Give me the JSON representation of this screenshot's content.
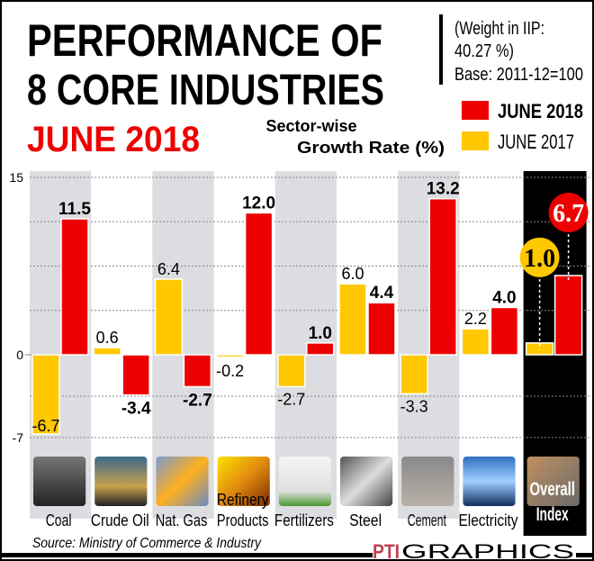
{
  "header": {
    "title_line1": "PERFORMANCE OF",
    "title_line2": "8 CORE INDUSTRIES",
    "title_line3": "JUNE 2018",
    "note_line1": "(Weight in IIP:",
    "note_line2": "40.27 %)",
    "note_line3": "Base: 2011-12=100",
    "subtitle_line1": "Sector-wise",
    "subtitle_line2": "Growth Rate (%)"
  },
  "footer": {
    "source": "Source: Ministry of Commerce & Industry",
    "credit_logo": "PTI",
    "credit": "GRAPHICS"
  },
  "chart_data": {
    "type": "bar",
    "title": "PERFORMANCE OF 8 CORE INDUSTRIES JUNE 2018",
    "ylabel": "Sector-wise Growth Rate (%)",
    "ylim": [
      -7,
      15
    ],
    "yticks": [
      15,
      0,
      -7
    ],
    "grid": true,
    "legend_placement": "top-right",
    "categories": [
      "Coal",
      "Crude Oil",
      "Nat. Gas",
      "Refinery Products",
      "Fertilizers",
      "Steel",
      "Cement",
      "Electricity",
      "Overall Index"
    ],
    "category_label_lines": [
      [
        "Coal"
      ],
      [
        "Crude Oil"
      ],
      [
        "Nat. Gas"
      ],
      [
        "Refinery",
        "Products"
      ],
      [
        "Fertilizers"
      ],
      [
        "Steel"
      ],
      [
        "Cement"
      ],
      [
        "Electricity"
      ],
      [
        "Overall",
        "Index"
      ]
    ],
    "category_icons": [
      "coal-photo",
      "oil-pump-photo",
      "gas-flare-photo",
      "fuel-nozzle-photo",
      "fertilizer-sack-photo",
      "steel-rods-photo",
      "cement-photo",
      "light-bulb-photo",
      "construction-photo"
    ],
    "series": [
      {
        "name": "JUNE 2017",
        "color": "#FFC800",
        "values": [
          -6.7,
          0.6,
          6.4,
          -0.2,
          -2.7,
          6.0,
          -3.3,
          2.2,
          1.0
        ],
        "labels": [
          "-6.7",
          "0.6",
          "6.4",
          "-0.2",
          "-2.7",
          "6.0",
          "-3.3",
          "2.2",
          "1.0"
        ]
      },
      {
        "name": "JUNE 2018",
        "color": "#EE0000",
        "values": [
          11.5,
          -3.4,
          -2.7,
          12.0,
          1.0,
          4.4,
          13.2,
          4.0,
          6.7
        ],
        "labels": [
          "11.5",
          "-3.4",
          "-2.7",
          "12.0",
          "1.0",
          "4.4",
          "13.2",
          "4.0",
          "6.7"
        ]
      }
    ]
  },
  "colors": {
    "accent_red": "#EE0000",
    "accent_yellow": "#FFC800",
    "stripe_gray": "#DCDDE1",
    "highlight_black": "#000000"
  }
}
